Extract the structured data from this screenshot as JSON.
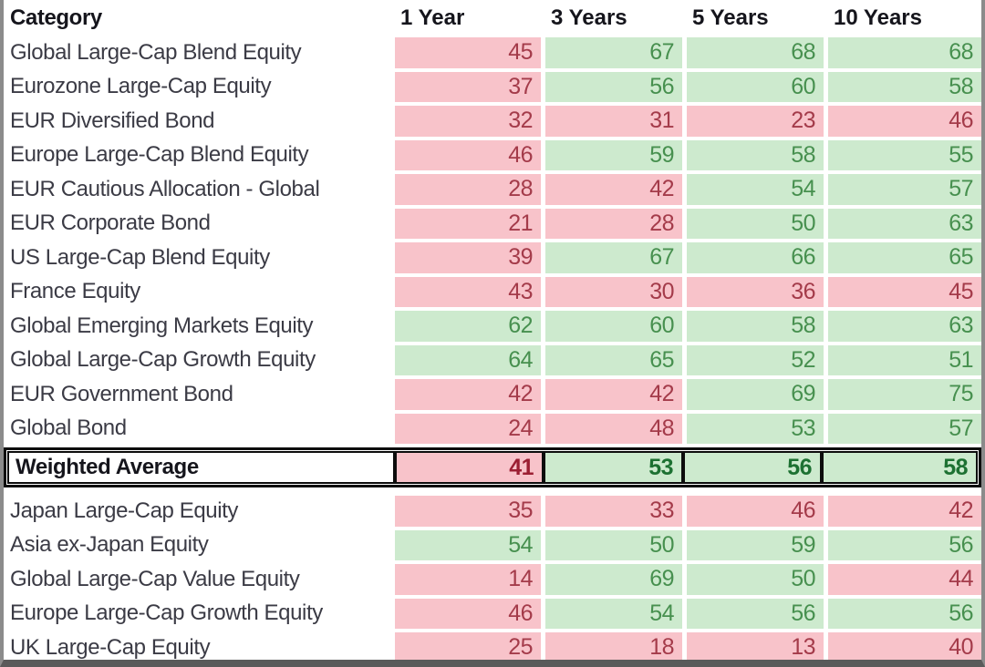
{
  "chart_data": {
    "type": "table",
    "columns": [
      "Category",
      "1 Year",
      "3 Years",
      "5 Years",
      "10 Years"
    ],
    "rows_above_average": [
      {
        "category": "Global Large-Cap Blend Equity",
        "values": [
          45,
          67,
          68,
          68
        ],
        "tones": [
          "neg",
          "pos",
          "pos",
          "pos"
        ]
      },
      {
        "category": "Eurozone Large-Cap Equity",
        "values": [
          37,
          56,
          60,
          58
        ],
        "tones": [
          "neg",
          "pos",
          "pos",
          "pos"
        ]
      },
      {
        "category": "EUR Diversified Bond",
        "values": [
          32,
          31,
          23,
          46
        ],
        "tones": [
          "neg",
          "neg",
          "neg",
          "neg"
        ]
      },
      {
        "category": "Europe Large-Cap Blend Equity",
        "values": [
          46,
          59,
          58,
          55
        ],
        "tones": [
          "neg",
          "pos",
          "pos",
          "pos"
        ]
      },
      {
        "category": "EUR Cautious Allocation - Global",
        "values": [
          28,
          42,
          54,
          57
        ],
        "tones": [
          "neg",
          "neg",
          "pos",
          "pos"
        ]
      },
      {
        "category": "EUR Corporate Bond",
        "values": [
          21,
          28,
          50,
          63
        ],
        "tones": [
          "neg",
          "neg",
          "pos",
          "pos"
        ]
      },
      {
        "category": "US Large-Cap Blend Equity",
        "values": [
          39,
          67,
          66,
          65
        ],
        "tones": [
          "neg",
          "pos",
          "pos",
          "pos"
        ]
      },
      {
        "category": "France Equity",
        "values": [
          43,
          30,
          36,
          45
        ],
        "tones": [
          "neg",
          "neg",
          "neg",
          "neg"
        ]
      },
      {
        "category": "Global Emerging Markets Equity",
        "values": [
          62,
          60,
          58,
          63
        ],
        "tones": [
          "pos",
          "pos",
          "pos",
          "pos"
        ]
      },
      {
        "category": "Global Large-Cap Growth Equity",
        "values": [
          64,
          65,
          52,
          51
        ],
        "tones": [
          "pos",
          "pos",
          "pos",
          "pos"
        ]
      },
      {
        "category": "EUR Government Bond",
        "values": [
          42,
          42,
          69,
          75
        ],
        "tones": [
          "neg",
          "neg",
          "pos",
          "pos"
        ]
      },
      {
        "category": "Global Bond",
        "values": [
          24,
          48,
          53,
          57
        ],
        "tones": [
          "neg",
          "neg",
          "pos",
          "pos"
        ]
      }
    ],
    "weighted_average": {
      "category": "Weighted Average",
      "values": [
        41,
        53,
        56,
        58
      ],
      "tones": [
        "neg",
        "pos",
        "pos",
        "pos"
      ]
    },
    "rows_below_average": [
      {
        "category": "Japan Large-Cap Equity",
        "values": [
          35,
          33,
          46,
          42
        ],
        "tones": [
          "neg",
          "neg",
          "neg",
          "neg"
        ]
      },
      {
        "category": "Asia ex-Japan Equity",
        "values": [
          54,
          50,
          59,
          56
        ],
        "tones": [
          "pos",
          "pos",
          "pos",
          "pos"
        ]
      },
      {
        "category": "Global Large-Cap Value Equity",
        "values": [
          14,
          69,
          50,
          44
        ],
        "tones": [
          "neg",
          "pos",
          "pos",
          "neg"
        ]
      },
      {
        "category": "Europe Large-Cap Growth Equity",
        "values": [
          46,
          54,
          56,
          56
        ],
        "tones": [
          "neg",
          "pos",
          "pos",
          "pos"
        ]
      },
      {
        "category": "UK Large-Cap Equity",
        "values": [
          25,
          18,
          13,
          40
        ],
        "tones": [
          "neg",
          "neg",
          "neg",
          "neg"
        ]
      }
    ]
  },
  "colors": {
    "negative_cell_bg": "#f8c3ca",
    "positive_cell_bg": "#cdeace",
    "negative_text": "#a43b4a",
    "positive_text": "#47904f",
    "average_negative_text": "#9c1f33",
    "average_positive_text": "#1d7132",
    "category_text": "#3b3b45",
    "header_text": "#15151c",
    "border_black": "#0d0d0d",
    "window_edge": "#8b8b8b",
    "window_bottom": "#5a5a5a"
  }
}
